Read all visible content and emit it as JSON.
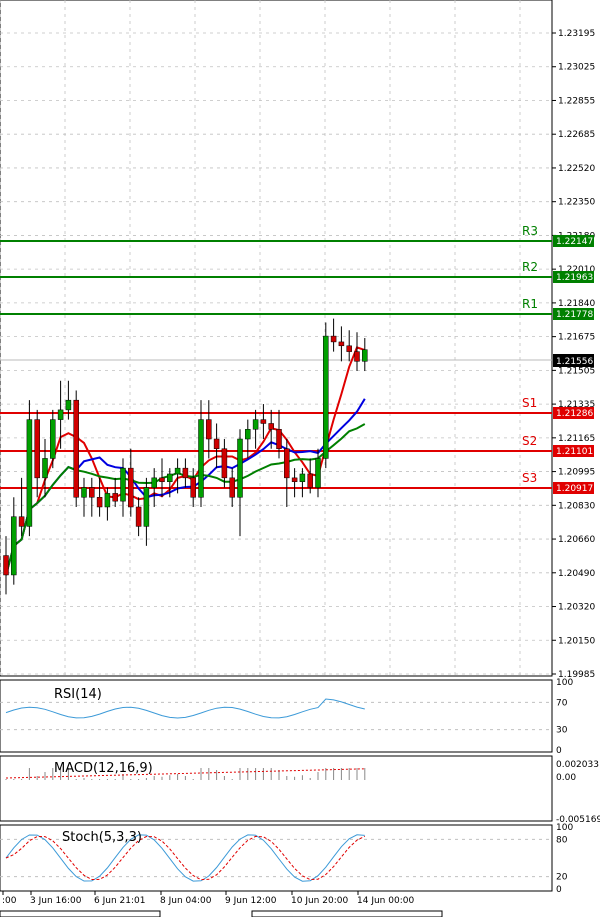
{
  "chart_data": {
    "type": "candlestick",
    "main": {
      "y_ticks": [
        "1.23195",
        "1.23025",
        "1.22855",
        "1.22685",
        "1.22520",
        "1.22350",
        "1.22180",
        "1.22010",
        "1.21840",
        "1.21675",
        "1.21505",
        "1.21335",
        "1.21165",
        "1.20995",
        "1.20830",
        "1.20660",
        "1.20490",
        "1.20320",
        "1.20150",
        "1.19985"
      ],
      "ylim": [
        1.1989,
        1.2334
      ],
      "current_price": "1.21556",
      "pivots": [
        {
          "label": "R3",
          "value": 1.22147,
          "text": "1.22147",
          "color": "#008000"
        },
        {
          "label": "R2",
          "value": 1.21963,
          "text": "1.21963",
          "color": "#008000"
        },
        {
          "label": "R1",
          "value": 1.21778,
          "text": "1.21778",
          "color": "#008000"
        },
        {
          "label": "S1",
          "value": 1.21286,
          "text": "1.21286",
          "color": "#e00000"
        },
        {
          "label": "S2",
          "value": 1.21101,
          "text": "1.21101",
          "color": "#e00000"
        },
        {
          "label": "S3",
          "value": 1.20917,
          "text": "1.20917",
          "color": "#e00000"
        }
      ],
      "candles": [
        [
          1.205,
          1.206,
          1.203,
          1.204
        ],
        [
          1.204,
          1.208,
          1.2035,
          1.207
        ],
        [
          1.207,
          1.209,
          1.206,
          1.2065
        ],
        [
          1.2065,
          1.213,
          1.206,
          1.212
        ],
        [
          1.212,
          1.2125,
          1.208,
          1.209
        ],
        [
          1.209,
          1.211,
          1.208,
          1.21
        ],
        [
          1.21,
          1.2125,
          1.2095,
          1.212
        ],
        [
          1.212,
          1.214,
          1.2105,
          1.2125
        ],
        [
          1.2125,
          1.214,
          1.212,
          1.213
        ],
        [
          1.213,
          1.2135,
          1.2075,
          1.208
        ],
        [
          1.208,
          1.209,
          1.207,
          1.2085
        ],
        [
          1.2085,
          1.209,
          1.207,
          1.208
        ],
        [
          1.208,
          1.209,
          1.207,
          1.2075
        ],
        [
          1.2075,
          1.2085,
          1.2068,
          1.2082
        ],
        [
          1.2082,
          1.209,
          1.2075,
          1.2078
        ],
        [
          1.2078,
          1.21,
          1.207,
          1.2095
        ],
        [
          1.2095,
          1.2105,
          1.207,
          1.2075
        ],
        [
          1.2075,
          1.208,
          1.206,
          1.2065
        ],
        [
          1.2065,
          1.209,
          1.2055,
          1.2085
        ],
        [
          1.2085,
          1.2095,
          1.2075,
          1.209
        ],
        [
          1.209,
          1.21,
          1.208,
          1.2088
        ],
        [
          1.2088,
          1.2095,
          1.208,
          1.2092
        ],
        [
          1.2092,
          1.21,
          1.2082,
          1.2095
        ],
        [
          1.2095,
          1.21,
          1.2085,
          1.209
        ],
        [
          1.209,
          1.2095,
          1.2075,
          1.208
        ],
        [
          1.208,
          1.213,
          1.2075,
          1.212
        ],
        [
          1.212,
          1.213,
          1.21,
          1.211
        ],
        [
          1.211,
          1.2118,
          1.2095,
          1.2105
        ],
        [
          1.2105,
          1.211,
          1.2085,
          1.209
        ],
        [
          1.209,
          1.2095,
          1.2075,
          1.208
        ],
        [
          1.208,
          1.2115,
          1.206,
          1.211
        ],
        [
          1.211,
          1.212,
          1.21,
          1.2115
        ],
        [
          1.2115,
          1.2125,
          1.2105,
          1.212
        ],
        [
          1.212,
          1.2128,
          1.211,
          1.2118
        ],
        [
          1.2118,
          1.2125,
          1.2105,
          1.2115
        ],
        [
          1.2115,
          1.2125,
          1.21,
          1.2105
        ],
        [
          1.2105,
          1.211,
          1.2075,
          1.209
        ],
        [
          1.209,
          1.2095,
          1.208,
          1.2088
        ],
        [
          1.2088,
          1.2095,
          1.208,
          1.2092
        ],
        [
          1.2092,
          1.21,
          1.2082,
          1.2085
        ],
        [
          1.2085,
          1.2105,
          1.208,
          1.21
        ],
        [
          1.21,
          1.217,
          1.2095,
          1.2163
        ],
        [
          1.2163,
          1.2172,
          1.2155,
          1.216
        ],
        [
          1.216,
          1.2168,
          1.215,
          1.2158
        ],
        [
          1.2158,
          1.2166,
          1.215,
          1.2155
        ],
        [
          1.2155,
          1.2165,
          1.2145,
          1.215
        ],
        [
          1.215,
          1.2162,
          1.2145,
          1.2156
        ]
      ]
    },
    "rsi": {
      "title": "RSI(14)",
      "y_ticks": [
        "100",
        "70",
        "30",
        "0"
      ]
    },
    "macd": {
      "title": "MACD(12,16,9)",
      "y_ticks": [
        "0.002033",
        "0.00",
        "-0.005169"
      ]
    },
    "stoch": {
      "title": "Stoch(5,3,3)",
      "y_ticks": [
        "100",
        "80",
        "20",
        "0"
      ]
    },
    "x_ticks": [
      ":00",
      "3 Jun 16:00",
      "6 Jun 21:01",
      "8 Jun 04:00",
      "9 Jun 12:00",
      "10 Jun 20:00",
      "14 Jun 00:00"
    ]
  }
}
